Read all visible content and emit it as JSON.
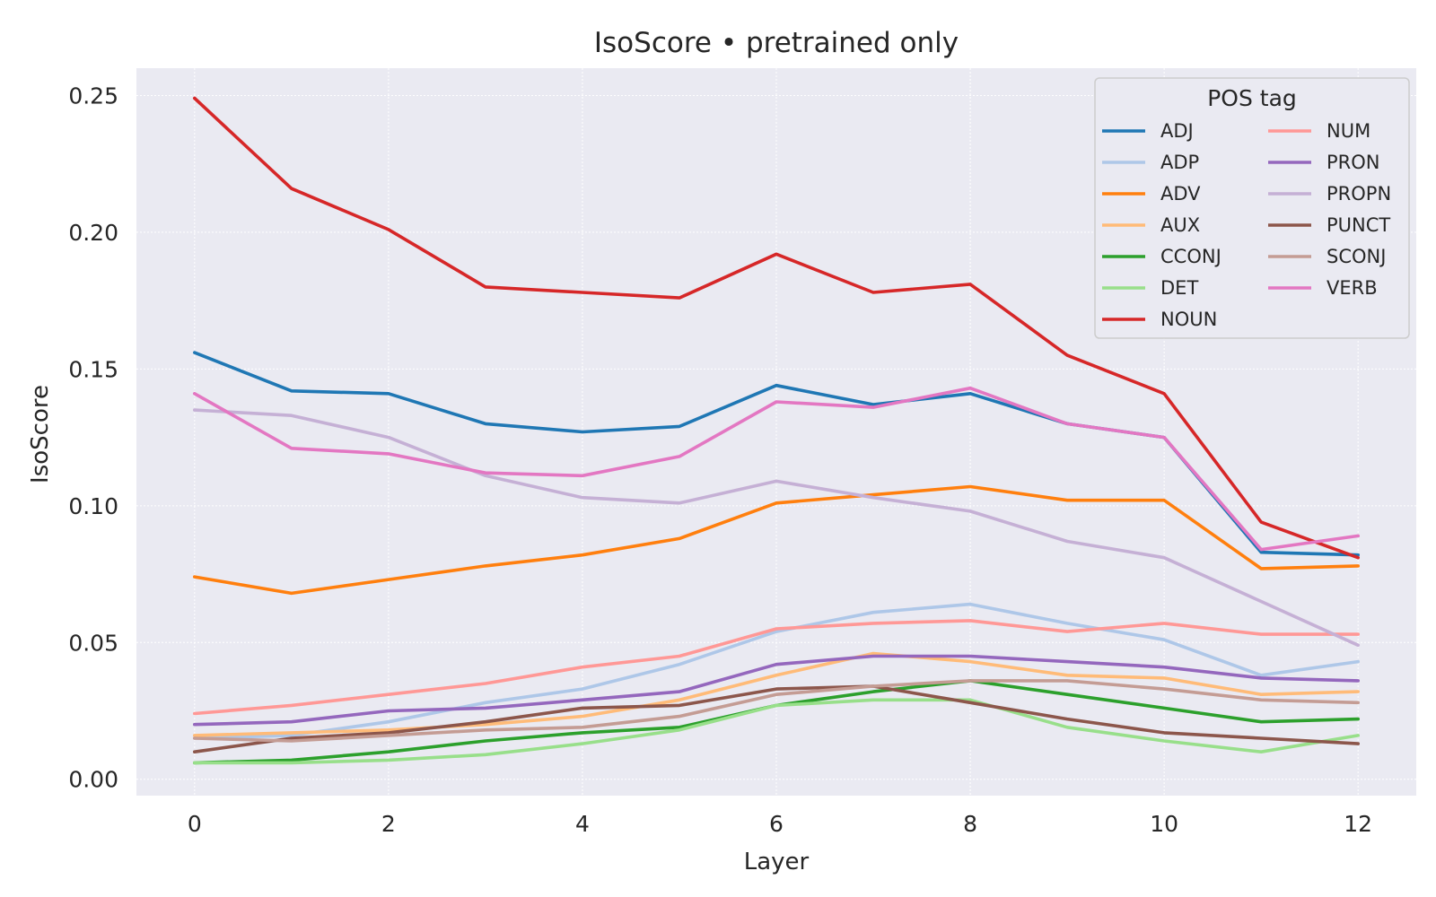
{
  "chart_data": {
    "type": "line",
    "title": "IsoScore • pretrained only",
    "xlabel": "Layer",
    "ylabel": "IsoScore",
    "x": [
      0,
      1,
      2,
      3,
      4,
      5,
      6,
      7,
      8,
      9,
      10,
      11,
      12
    ],
    "xlim": [
      -0.6,
      12.6
    ],
    "ylim": [
      -0.006,
      0.26
    ],
    "xticks": [
      0,
      2,
      4,
      6,
      8,
      10,
      12
    ],
    "xtick_labels": [
      "0",
      "2",
      "4",
      "6",
      "8",
      "10",
      "12"
    ],
    "yticks": [
      0.0,
      0.05,
      0.1,
      0.15,
      0.2,
      0.25
    ],
    "ytick_labels": [
      "0.00",
      "0.05",
      "0.10",
      "0.15",
      "0.20",
      "0.25"
    ],
    "grid": true,
    "background": "#eaeaf2",
    "legend": {
      "title": "POS tag",
      "position": "top-right",
      "columns": 2
    },
    "series": [
      {
        "name": "ADJ",
        "color": "#1f77b4",
        "values": [
          0.156,
          0.142,
          0.141,
          0.13,
          0.127,
          0.129,
          0.144,
          0.137,
          0.141,
          0.13,
          0.125,
          0.083,
          0.082
        ]
      },
      {
        "name": "ADP",
        "color": "#aec7e8",
        "values": [
          0.015,
          0.016,
          0.021,
          0.028,
          0.033,
          0.042,
          0.054,
          0.061,
          0.064,
          0.057,
          0.051,
          0.038,
          0.043
        ]
      },
      {
        "name": "ADV",
        "color": "#ff7f0e",
        "values": [
          0.074,
          0.068,
          0.073,
          0.078,
          0.082,
          0.088,
          0.101,
          0.104,
          0.107,
          0.102,
          0.102,
          0.077,
          0.078
        ]
      },
      {
        "name": "AUX",
        "color": "#ffbb78",
        "values": [
          0.016,
          0.017,
          0.018,
          0.02,
          0.023,
          0.029,
          0.038,
          0.046,
          0.043,
          0.038,
          0.037,
          0.031,
          0.032
        ]
      },
      {
        "name": "CCONJ",
        "color": "#2ca02c",
        "values": [
          0.006,
          0.007,
          0.01,
          0.014,
          0.017,
          0.019,
          0.027,
          0.032,
          0.036,
          0.031,
          0.026,
          0.021,
          0.022
        ]
      },
      {
        "name": "DET",
        "color": "#98df8a",
        "values": [
          0.006,
          0.006,
          0.007,
          0.009,
          0.013,
          0.018,
          0.027,
          0.029,
          0.029,
          0.019,
          0.014,
          0.01,
          0.016
        ]
      },
      {
        "name": "NOUN",
        "color": "#d62728",
        "values": [
          0.249,
          0.216,
          0.201,
          0.18,
          0.178,
          0.176,
          0.192,
          0.178,
          0.181,
          0.155,
          0.141,
          0.094,
          0.081
        ]
      },
      {
        "name": "NUM",
        "color": "#ff9896",
        "values": [
          0.024,
          0.027,
          0.031,
          0.035,
          0.041,
          0.045,
          0.055,
          0.057,
          0.058,
          0.054,
          0.057,
          0.053,
          0.053
        ]
      },
      {
        "name": "PRON",
        "color": "#9467bd",
        "values": [
          0.02,
          0.021,
          0.025,
          0.026,
          0.029,
          0.032,
          0.042,
          0.045,
          0.045,
          0.043,
          0.041,
          0.037,
          0.036
        ]
      },
      {
        "name": "PROPN",
        "color": "#c5b0d5",
        "values": [
          0.135,
          0.133,
          0.125,
          0.111,
          0.103,
          0.101,
          0.109,
          0.103,
          0.098,
          0.087,
          0.081,
          0.065,
          0.049
        ]
      },
      {
        "name": "PUNCT",
        "color": "#8c564b",
        "values": [
          0.01,
          0.015,
          0.017,
          0.021,
          0.026,
          0.027,
          0.033,
          0.034,
          0.028,
          0.022,
          0.017,
          0.015,
          0.013
        ]
      },
      {
        "name": "SCONJ",
        "color": "#c49c94",
        "values": [
          0.015,
          0.014,
          0.016,
          0.018,
          0.019,
          0.023,
          0.031,
          0.034,
          0.036,
          0.036,
          0.033,
          0.029,
          0.028
        ]
      },
      {
        "name": "VERB",
        "color": "#e377c2",
        "values": [
          0.141,
          0.121,
          0.119,
          0.112,
          0.111,
          0.118,
          0.138,
          0.136,
          0.143,
          0.13,
          0.125,
          0.084,
          0.089
        ]
      }
    ]
  }
}
